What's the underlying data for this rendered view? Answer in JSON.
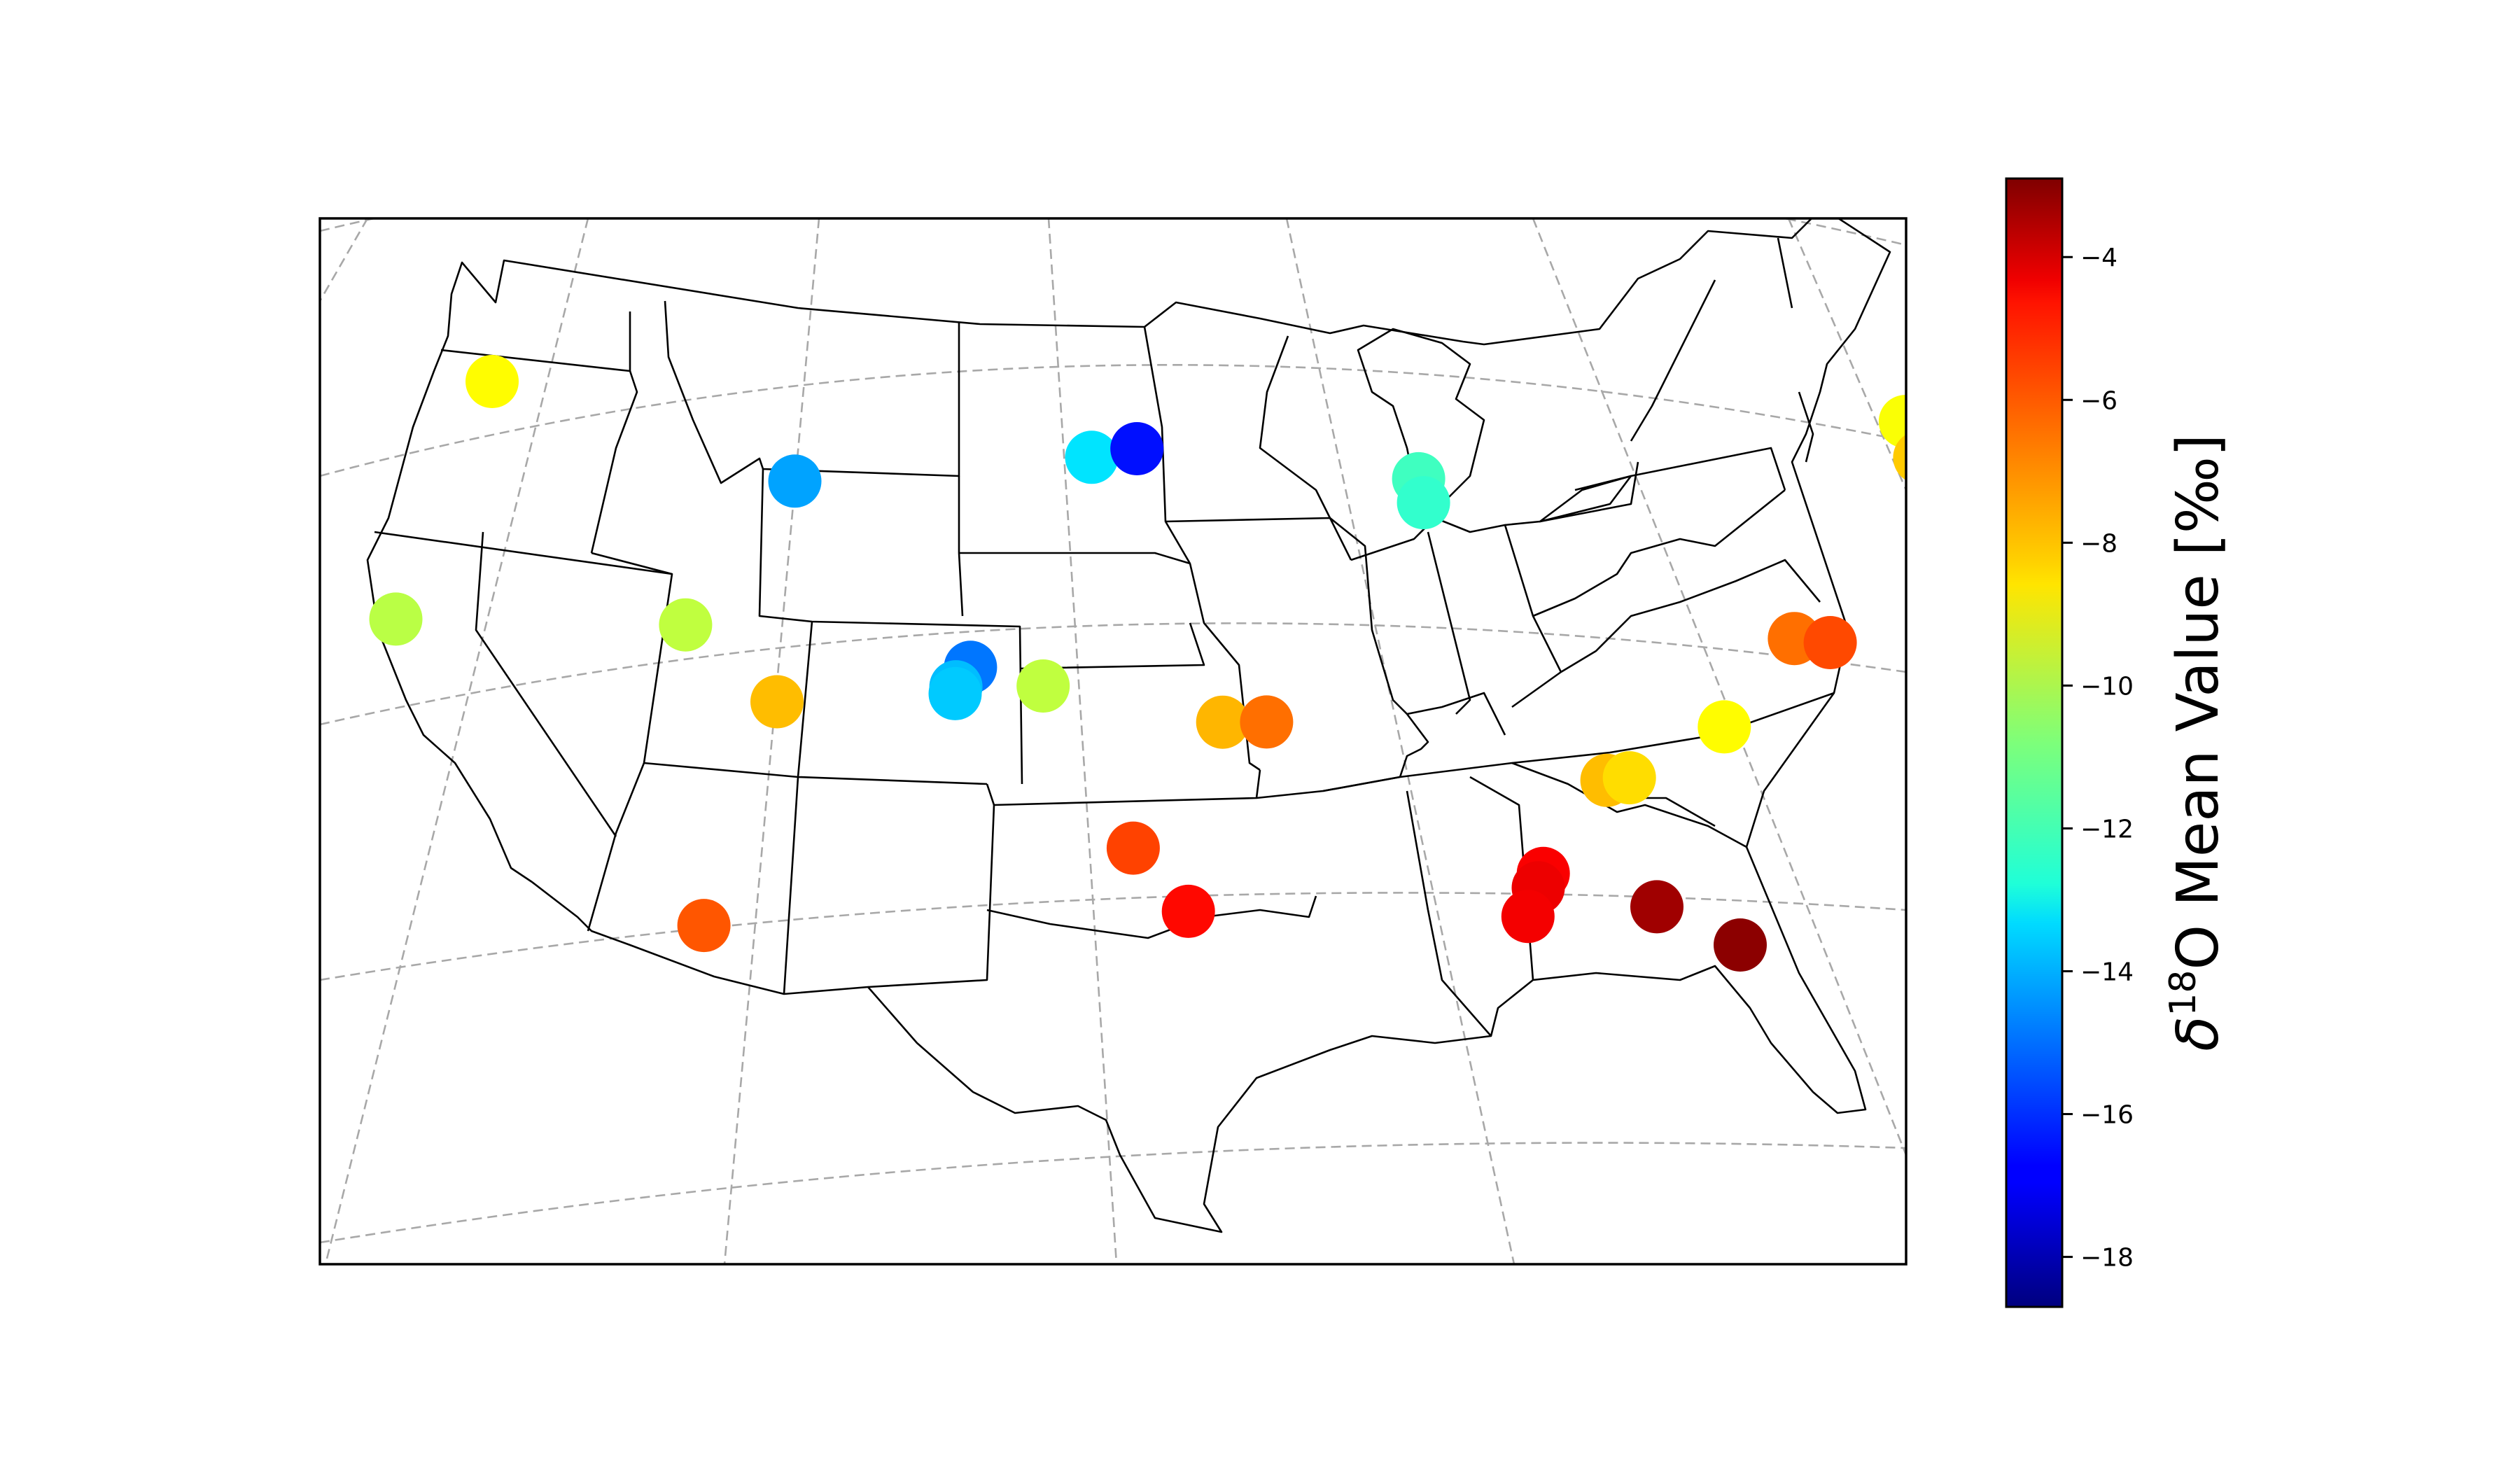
{
  "chart_data": {
    "type": "scatter",
    "title": "",
    "projection": "lambert-conformal-conic",
    "region": "contiguous United States",
    "grid": true,
    "colormap": "jet",
    "colorbar": {
      "label_prefix": "δ",
      "label_superscript": "18",
      "label_main": "O Mean Value [‰]",
      "range": [
        -18.7,
        -2.9
      ],
      "ticks": [
        -4,
        -6,
        -8,
        -10,
        -12,
        -14,
        -16,
        -18
      ],
      "tick_labels": [
        "−4",
        "−6",
        "−8",
        "−10",
        "−12",
        "−14",
        "−16",
        "−18"
      ],
      "placement": "right"
    },
    "points": [
      {
        "lon": -122.5,
        "lat": 45.6,
        "value": -8.8
      },
      {
        "lon": -111.2,
        "lat": 44.5,
        "value": -14.2
      },
      {
        "lon": -100.9,
        "lat": 46.0,
        "value": -13.2
      },
      {
        "lon": -99.3,
        "lat": 46.3,
        "value": -16.5
      },
      {
        "lon": -89.3,
        "lat": 45.3,
        "value": -11.8
      },
      {
        "lon": -89.2,
        "lat": 44.6,
        "value": -12.0
      },
      {
        "lon": -113.8,
        "lat": 39.9,
        "value": -9.8
      },
      {
        "lon": -110.4,
        "lat": 38.1,
        "value": -7.8
      },
      {
        "lon": -104.4,
        "lat": 39.7,
        "value": -14.9
      },
      {
        "lon": -104.8,
        "lat": 39.1,
        "value": -13.8
      },
      {
        "lon": -104.8,
        "lat": 38.9,
        "value": -13.6
      },
      {
        "lon": -102.0,
        "lat": 39.3,
        "value": -9.8
      },
      {
        "lon": -122.9,
        "lat": 38.3,
        "value": -9.9
      },
      {
        "lon": -111.3,
        "lat": 31.4,
        "value": -6.2
      },
      {
        "lon": -96.2,
        "lat": 38.4,
        "value": -7.7
      },
      {
        "lon": -94.8,
        "lat": 38.4,
        "value": -6.6
      },
      {
        "lon": -98.9,
        "lat": 34.7,
        "value": -5.9
      },
      {
        "lon": -97.2,
        "lat": 32.9,
        "value": -5.0
      },
      {
        "lon": -86.6,
        "lat": 33.6,
        "value": -4.8
      },
      {
        "lon": -86.8,
        "lat": 33.2,
        "value": -4.6
      },
      {
        "lon": -87.2,
        "lat": 32.4,
        "value": -4.7
      },
      {
        "lon": -83.4,
        "lat": 32.3,
        "value": -3.4
      },
      {
        "lon": -81.2,
        "lat": 30.9,
        "value": -3.1
      },
      {
        "lon": -84.3,
        "lat": 36.1,
        "value": -7.8
      },
      {
        "lon": -83.6,
        "lat": 36.1,
        "value": -8.3
      },
      {
        "lon": -80.4,
        "lat": 37.2,
        "value": -8.8
      },
      {
        "lon": -77.6,
        "lat": 39.4,
        "value": -6.6
      },
      {
        "lon": -76.5,
        "lat": 39.1,
        "value": -6.0
      },
      {
        "lon": -72.0,
        "lat": 44.9,
        "value": -8.9
      },
      {
        "lon": -71.9,
        "lat": 43.8,
        "value": -8.0
      }
    ]
  }
}
